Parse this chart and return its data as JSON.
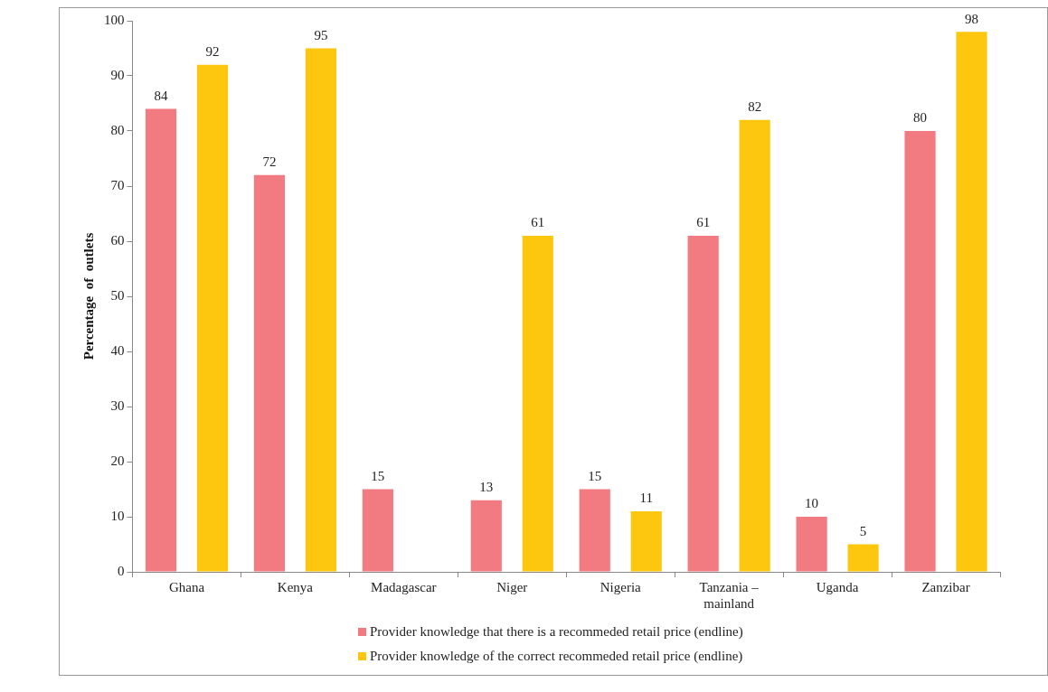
{
  "chart_data": {
    "type": "bar",
    "ylabel": "Percentage  of  outlets",
    "categories": [
      "Ghana",
      "Kenya",
      "Madagascar",
      "Niger",
      "Nigeria",
      "Tanzania – mainland",
      "Uganda",
      "Zanzibar"
    ],
    "series": [
      {
        "name": "Provider knowledge that there is a recommeded retail  price (endline)",
        "color": "#f27b81",
        "values": [
          84,
          72,
          15,
          13,
          15,
          61,
          10,
          80
        ]
      },
      {
        "name": "Provider knowledge of the correct recommeded retail price (endline)",
        "color": "#fdc70f",
        "values": [
          92,
          95,
          null,
          61,
          11,
          82,
          5,
          98
        ]
      }
    ],
    "ylim": [
      0,
      100
    ],
    "yticks": [
      0,
      10,
      20,
      30,
      40,
      50,
      60,
      70,
      80,
      90,
      100
    ],
    "grid": false,
    "legend": "bottom",
    "data_labels": true
  }
}
